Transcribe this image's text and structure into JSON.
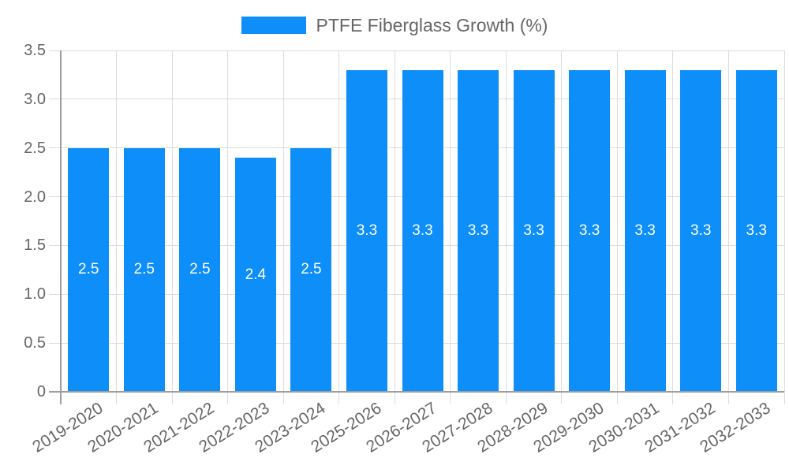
{
  "chart_data": {
    "type": "bar",
    "title": "",
    "legend": {
      "label": "PTFE Fiberglass Growth (%)",
      "position": "top"
    },
    "categories": [
      "2019-2020",
      "2020-2021",
      "2021-2022",
      "2022-2023",
      "2023-2024",
      "2025-2026",
      "2026-2027",
      "2027-2028",
      "2028-2029",
      "2029-2030",
      "2030-2031",
      "2031-2032",
      "2032-2033"
    ],
    "values": [
      2.5,
      2.5,
      2.5,
      2.4,
      2.5,
      3.3,
      3.3,
      3.3,
      3.3,
      3.3,
      3.3,
      3.3,
      3.3
    ],
    "bar_labels": [
      "2.5",
      "2.5",
      "2.5",
      "2.4",
      "2.5",
      "3.3",
      "3.3",
      "3.3",
      "3.3",
      "3.3",
      "3.3",
      "3.3",
      "3.3"
    ],
    "xlabel": "",
    "ylabel": "",
    "ylim": [
      0,
      3.5
    ],
    "ytick_step": 0.5,
    "yticks": [
      "0",
      "0.5",
      "1.0",
      "1.5",
      "2.0",
      "2.5",
      "3.0",
      "3.5"
    ],
    "grid": true,
    "colors": {
      "bar": "#0d8ef8",
      "bar_label": "#ffffff",
      "grid": "#dcdcdc",
      "axis": "#9e9e9e",
      "text": "#666666",
      "background": "#ffffff"
    }
  }
}
